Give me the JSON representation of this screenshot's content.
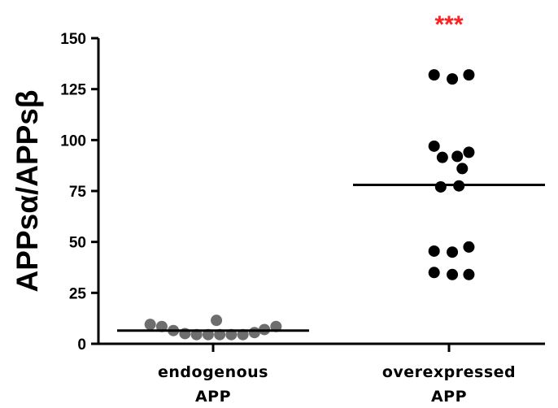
{
  "chart_data": {
    "type": "scatter",
    "title": "",
    "ylabel": "APPsα/APPsβ",
    "ylim": [
      0,
      150
    ],
    "yticks": [
      0,
      25,
      50,
      75,
      100,
      125,
      150
    ],
    "categories": [
      {
        "lines": [
          "endogenous",
          "APP"
        ]
      },
      {
        "lines": [
          "overexpressed",
          "APP"
        ]
      }
    ],
    "series": [
      {
        "color": "#6e6e6e",
        "mean": 6.5,
        "points": [
          {
            "offset": -0.38,
            "y": 9.5
          },
          {
            "offset": -0.31,
            "y": 8.5
          },
          {
            "offset": -0.24,
            "y": 6.5
          },
          {
            "offset": -0.17,
            "y": 5.0
          },
          {
            "offset": -0.1,
            "y": 4.5
          },
          {
            "offset": -0.03,
            "y": 4.5
          },
          {
            "offset": 0.04,
            "y": 4.5
          },
          {
            "offset": 0.11,
            "y": 4.5
          },
          {
            "offset": 0.18,
            "y": 4.5
          },
          {
            "offset": 0.25,
            "y": 5.5
          },
          {
            "offset": 0.31,
            "y": 7.0
          },
          {
            "offset": 0.38,
            "y": 8.5
          },
          {
            "offset": 0.02,
            "y": 11.5
          }
        ]
      },
      {
        "color": "#000000",
        "mean": 78,
        "annotation": "***",
        "annotation_color": "#ff2020",
        "points": [
          {
            "offset": -0.09,
            "y": 132
          },
          {
            "offset": 0.02,
            "y": 130
          },
          {
            "offset": 0.12,
            "y": 132
          },
          {
            "offset": -0.09,
            "y": 97
          },
          {
            "offset": 0.12,
            "y": 94
          },
          {
            "offset": -0.04,
            "y": 91.5
          },
          {
            "offset": 0.05,
            "y": 92
          },
          {
            "offset": 0.08,
            "y": 86
          },
          {
            "offset": -0.05,
            "y": 77
          },
          {
            "offset": 0.06,
            "y": 77.5
          },
          {
            "offset": -0.09,
            "y": 45.5
          },
          {
            "offset": 0.02,
            "y": 45
          },
          {
            "offset": 0.12,
            "y": 47.5
          },
          {
            "offset": -0.09,
            "y": 35
          },
          {
            "offset": 0.02,
            "y": 34
          },
          {
            "offset": 0.12,
            "y": 34
          }
        ]
      }
    ]
  }
}
